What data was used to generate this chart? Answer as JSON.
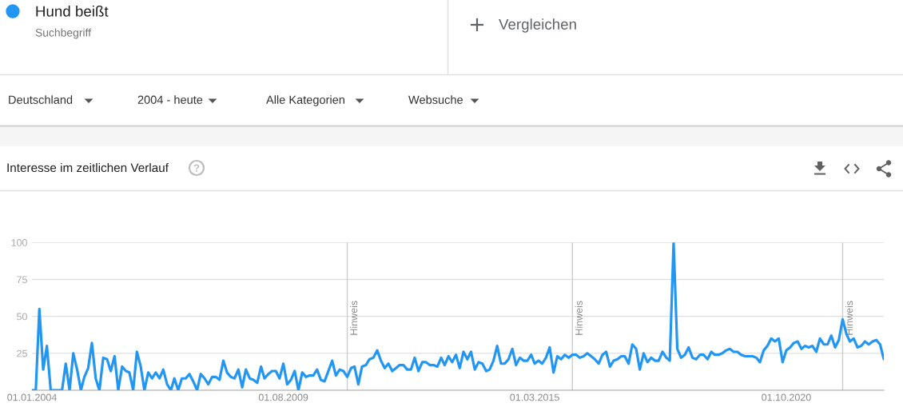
{
  "chart_data": {
    "type": "line",
    "title": "Interesse im zeitlichen Verlauf",
    "annotations": [
      "Suchbegriff",
      "Vergleichen",
      "Deutschland",
      "2004 - heute",
      "Alle Kategorien",
      "Websuche"
    ],
    "x": [
      "2004-01",
      "2004-02",
      "2004-03",
      "2004-04",
      "2004-05",
      "2004-06",
      "2004-07",
      "2004-08",
      "2004-09",
      "2004-10",
      "2004-11",
      "2004-12",
      "2005-01",
      "2005-02",
      "2005-03",
      "2005-04",
      "2005-05",
      "2005-06",
      "2005-07",
      "2005-08",
      "2005-09",
      "2005-10",
      "2005-11",
      "2005-12",
      "2006-01",
      "2006-02",
      "2006-03",
      "2006-04",
      "2006-05",
      "2006-06",
      "2006-07",
      "2006-08",
      "2006-09",
      "2006-10",
      "2006-11",
      "2006-12",
      "2007-01",
      "2007-02",
      "2007-03",
      "2007-04",
      "2007-05",
      "2007-06",
      "2007-07",
      "2007-08",
      "2007-09",
      "2007-10",
      "2007-11",
      "2007-12",
      "2008-01",
      "2008-02",
      "2008-03",
      "2008-04",
      "2008-05",
      "2008-06",
      "2008-07",
      "2008-08",
      "2008-09",
      "2008-10",
      "2008-11",
      "2008-12",
      "2009-01",
      "2009-02",
      "2009-03",
      "2009-04",
      "2009-05",
      "2009-06",
      "2009-07",
      "2009-08",
      "2009-09",
      "2009-10",
      "2009-11",
      "2009-12",
      "2010-01",
      "2010-02",
      "2010-03",
      "2010-04",
      "2010-05",
      "2010-06",
      "2010-07",
      "2010-08",
      "2010-09",
      "2010-10",
      "2010-11",
      "2010-12",
      "2011-01",
      "2011-02",
      "2011-03",
      "2011-04",
      "2011-05",
      "2011-06",
      "2011-07",
      "2011-08",
      "2011-09",
      "2011-10",
      "2011-11",
      "2011-12",
      "2012-01",
      "2012-02",
      "2012-03",
      "2012-04",
      "2012-05",
      "2012-06",
      "2012-07",
      "2012-08",
      "2012-09",
      "2012-10",
      "2012-11",
      "2012-12",
      "2013-01",
      "2013-02",
      "2013-03",
      "2013-04",
      "2013-05",
      "2013-06",
      "2013-07",
      "2013-08",
      "2013-09",
      "2013-10",
      "2013-11",
      "2013-12",
      "2014-01",
      "2014-02",
      "2014-03",
      "2014-04",
      "2014-05",
      "2014-06",
      "2014-07",
      "2014-08",
      "2014-09",
      "2014-10",
      "2014-11",
      "2014-12",
      "2015-01",
      "2015-02",
      "2015-03",
      "2015-04",
      "2015-05",
      "2015-06",
      "2015-07",
      "2015-08",
      "2015-09",
      "2015-10",
      "2015-11",
      "2015-12",
      "2016-01",
      "2016-02",
      "2016-03",
      "2016-04",
      "2016-05",
      "2016-06",
      "2016-07",
      "2016-08",
      "2016-09",
      "2016-10",
      "2016-11",
      "2016-12",
      "2017-01",
      "2017-02",
      "2017-03",
      "2017-04",
      "2017-05",
      "2017-06",
      "2017-07",
      "2017-08",
      "2017-09",
      "2017-10",
      "2017-11",
      "2017-12",
      "2018-01",
      "2018-02",
      "2018-03",
      "2018-04",
      "2018-05",
      "2018-06",
      "2018-07",
      "2018-08",
      "2018-09",
      "2018-10",
      "2018-11",
      "2018-12",
      "2019-01",
      "2019-02",
      "2019-03",
      "2019-04",
      "2019-05",
      "2019-06",
      "2019-07",
      "2019-08",
      "2019-09",
      "2019-10",
      "2019-11",
      "2019-12",
      "2020-01",
      "2020-02",
      "2020-03",
      "2020-04",
      "2020-05",
      "2020-06",
      "2020-07",
      "2020-08",
      "2020-09",
      "2020-10",
      "2020-11",
      "2020-12",
      "2021-01",
      "2021-02",
      "2021-03",
      "2021-04",
      "2021-05",
      "2021-06",
      "2021-07",
      "2021-08",
      "2021-09",
      "2021-10",
      "2021-11",
      "2021-12",
      "2022-01",
      "2022-02",
      "2022-03",
      "2022-04",
      "2022-05",
      "2022-06",
      "2022-07",
      "2022-08",
      "2022-09",
      "2022-10",
      "2022-11",
      "2022-12"
    ],
    "series": [
      {
        "name": "Hund beißt",
        "color": "#2196f3",
        "values": [
          0,
          0,
          55,
          14,
          30,
          0,
          0,
          0,
          0,
          18,
          0,
          25,
          14,
          0,
          9,
          15,
          32,
          8,
          0,
          22,
          21,
          13,
          23,
          0,
          16,
          13,
          12,
          0,
          26,
          16,
          0,
          12,
          8,
          12,
          8,
          14,
          4,
          0,
          8,
          0,
          8,
          8,
          11,
          6,
          0,
          11,
          8,
          4,
          9,
          9,
          7,
          20,
          12,
          9,
          8,
          14,
          2,
          14,
          8,
          7,
          5,
          16,
          8,
          11,
          13,
          13,
          8,
          18,
          4,
          7,
          13,
          0,
          12,
          9,
          10,
          10,
          14,
          7,
          6,
          13,
          20,
          10,
          14,
          13,
          9,
          15,
          16,
          4,
          16,
          17,
          21,
          22,
          27,
          20,
          15,
          18,
          13,
          15,
          17,
          17,
          14,
          14,
          22,
          13,
          19,
          19,
          17,
          17,
          16,
          22,
          17,
          23,
          19,
          24,
          15,
          26,
          21,
          26,
          14,
          19,
          18,
          13,
          14,
          20,
          30,
          18,
          18,
          21,
          28,
          17,
          22,
          20,
          20,
          24,
          18,
          20,
          18,
          22,
          29,
          12,
          23,
          21,
          24,
          22,
          24,
          24,
          22,
          23,
          25,
          23,
          21,
          18,
          24,
          26,
          16,
          20,
          21,
          23,
          23,
          18,
          31,
          28,
          14,
          25,
          19,
          22,
          20,
          20,
          26,
          22,
          20,
          100,
          28,
          22,
          24,
          29,
          22,
          21,
          24,
          24,
          21,
          26,
          24,
          24,
          25,
          27,
          28,
          26,
          26,
          24,
          23,
          23,
          23,
          22,
          19,
          27,
          30,
          35,
          33,
          35,
          19,
          27,
          29,
          32,
          33,
          28,
          30,
          29,
          30,
          26,
          35,
          31,
          31,
          37,
          29,
          34,
          48,
          38,
          33,
          35,
          29,
          30,
          33,
          31,
          33,
          34,
          31,
          21
        ]
      }
    ],
    "xlim": [
      "2004-01",
      "2022-12"
    ],
    "xticks": [
      {
        "value": "2004-01-01",
        "label": "01.01.2004"
      },
      {
        "value": "2009-08-01",
        "label": "01.08.2009"
      },
      {
        "value": "2015-03-01",
        "label": "01.03.2015"
      },
      {
        "value": "2020-10-01",
        "label": "01.10.2020"
      }
    ],
    "ylim": [
      0,
      100
    ],
    "yticks": [
      25,
      50,
      75,
      100
    ],
    "grid": "y",
    "legend": "top left",
    "ref_lines": [
      {
        "axis": "x",
        "value": "2011-01-01",
        "label": "Hinweis",
        "color": "#cccccc"
      },
      {
        "axis": "x",
        "value": "2016-01-01",
        "label": "Hinweis",
        "color": "#cccccc"
      },
      {
        "axis": "x",
        "value": "2022-01-01",
        "label": "Hinweis",
        "color": "#cccccc"
      }
    ]
  }
}
